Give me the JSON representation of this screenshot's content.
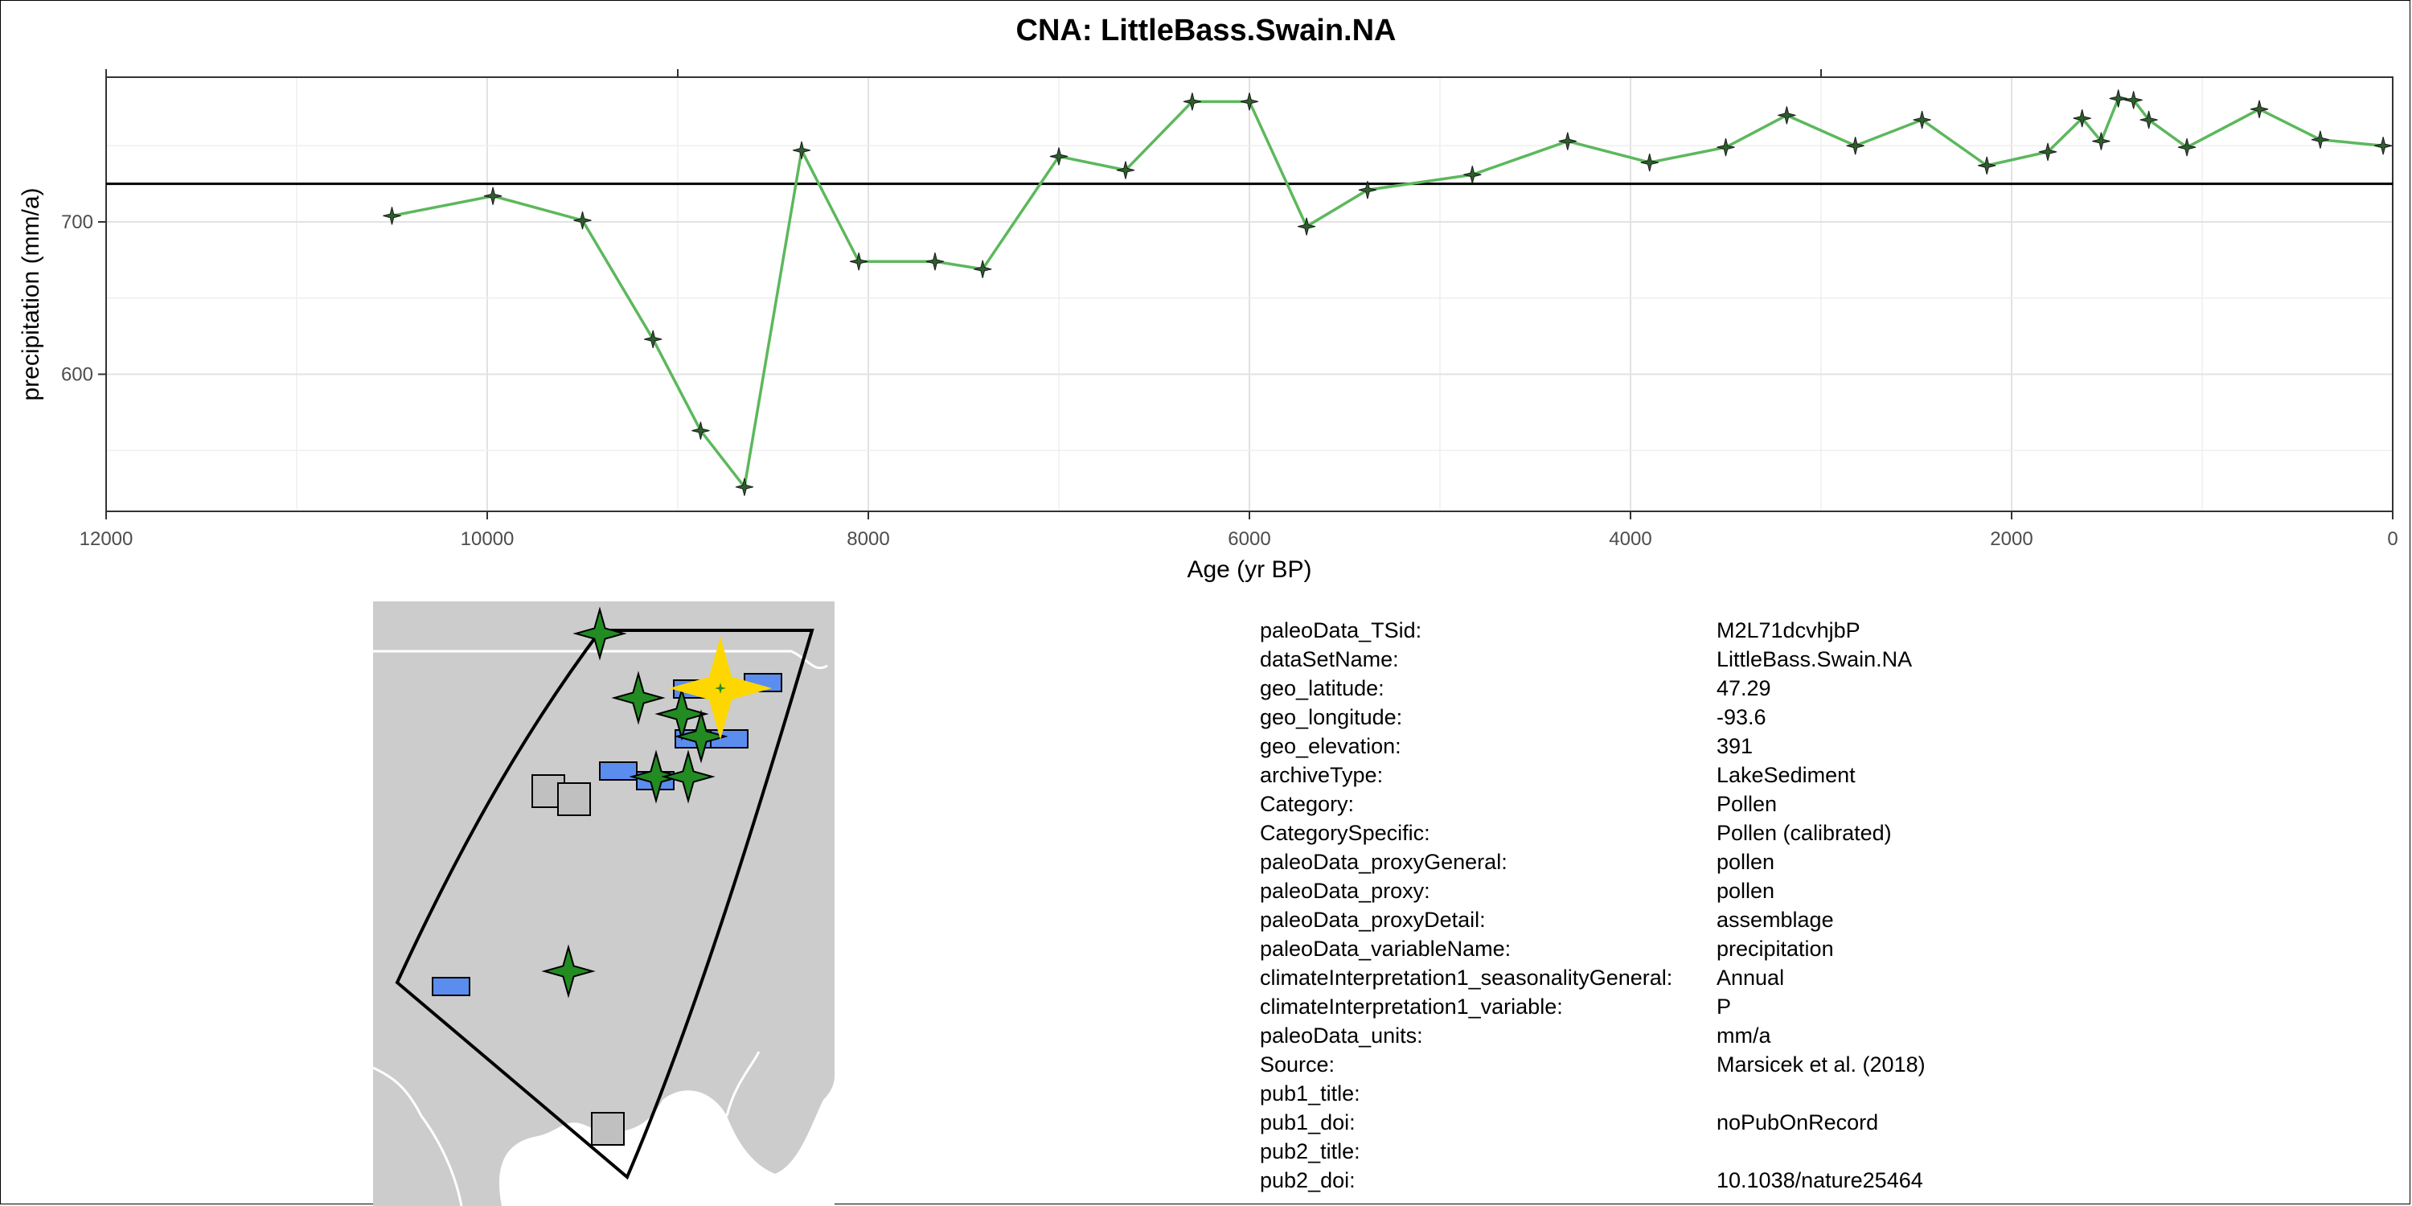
{
  "chart_data": {
    "type": "line",
    "title": "CNA: LittleBass.Swain.NA",
    "xlabel": "Age (yr BP)",
    "ylabel": "precipitation (mm/a)",
    "xlim": [
      12000,
      0
    ],
    "ylim": [
      510,
      795
    ],
    "x_reversed": true,
    "x_ticks": [
      12000,
      10000,
      8000,
      6000,
      4000,
      2000,
      0
    ],
    "y_ticks": [
      600,
      700
    ],
    "reference_line": 725,
    "grid": true,
    "colors": {
      "line": "#5cb85c",
      "marker": "#2e5e2e",
      "reference": "#000000"
    },
    "series": [
      {
        "x": [
          10500,
          9970,
          9500,
          9130,
          8880,
          8650,
          8350,
          8050,
          7650,
          7400,
          7000,
          6650,
          6300,
          6000,
          5700,
          5380,
          4830,
          4330,
          3900,
          3500,
          3180,
          2820,
          2470,
          2130,
          1810,
          1630,
          1530,
          1440,
          1360,
          1280,
          1080,
          700,
          380,
          50
        ],
        "values": [
          704,
          717,
          701,
          623,
          563,
          526,
          747,
          674,
          674,
          669,
          743,
          734,
          779,
          779,
          697,
          721,
          731,
          753,
          739,
          749,
          770,
          750,
          767,
          737,
          746,
          768,
          753,
          781,
          780,
          767,
          749,
          774,
          754,
          750
        ]
      }
    ]
  },
  "map": {
    "colors": {
      "land": "#cccccc",
      "borders": "#ffffff",
      "region": "#000000",
      "star": "#228b22",
      "square_blue": "#5b8def",
      "square_gray": "#c0c0c0",
      "highlight": "#ffd700"
    }
  },
  "metadata": [
    {
      "key": "paleoData_TSid:",
      "value": "M2L71dcvhjbP"
    },
    {
      "key": "dataSetName:",
      "value": "LittleBass.Swain.NA"
    },
    {
      "key": "geo_latitude:",
      "value": "47.29"
    },
    {
      "key": "geo_longitude:",
      "value": "-93.6"
    },
    {
      "key": "geo_elevation:",
      "value": "391"
    },
    {
      "key": "archiveType:",
      "value": "LakeSediment"
    },
    {
      "key": "Category:",
      "value": "Pollen"
    },
    {
      "key": "CategorySpecific:",
      "value": "Pollen (calibrated)"
    },
    {
      "key": "paleoData_proxyGeneral:",
      "value": "pollen"
    },
    {
      "key": "paleoData_proxy:",
      "value": "pollen"
    },
    {
      "key": "paleoData_proxyDetail:",
      "value": "assemblage"
    },
    {
      "key": "paleoData_variableName:",
      "value": "precipitation"
    },
    {
      "key": "climateInterpretation1_seasonalityGeneral:",
      "value": "Annual"
    },
    {
      "key": "climateInterpretation1_variable:",
      "value": "P"
    },
    {
      "key": "paleoData_units:",
      "value": "mm/a"
    },
    {
      "key": "Source:",
      "value": "Marsicek et al. (2018)"
    },
    {
      "key": "pub1_title:",
      "value": ""
    },
    {
      "key": "pub1_doi:",
      "value": "noPubOnRecord"
    },
    {
      "key": "pub2_title:",
      "value": ""
    },
    {
      "key": "pub2_doi:",
      "value": "10.1038/nature25464"
    }
  ]
}
